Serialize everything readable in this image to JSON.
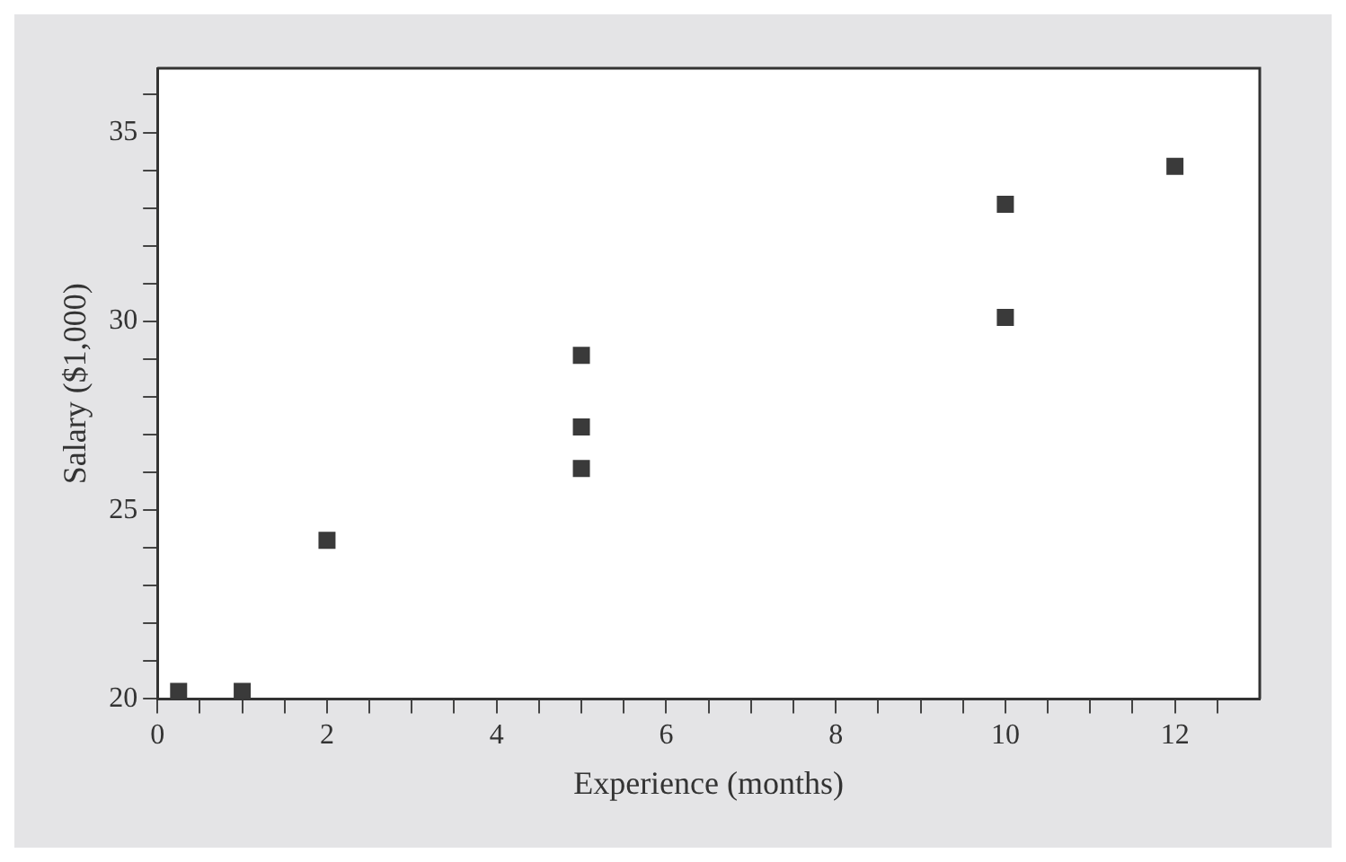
{
  "chart_data": {
    "type": "scatter",
    "xlabel": "Experience (months)",
    "ylabel": "Salary ($1,000)",
    "x": [
      0.25,
      1,
      2,
      5,
      5,
      5,
      10,
      10,
      12
    ],
    "values": [
      20.2,
      20.2,
      24.2,
      29.1,
      27.2,
      26.1,
      33.1,
      30.1,
      34.1
    ],
    "color": "#3a3a3a",
    "marker": "square",
    "grid": false,
    "legend": false,
    "xlim": [
      0,
      13
    ],
    "ylim": [
      20,
      36.7
    ],
    "xticks": [
      0,
      {
        "value": 0.5,
        "label": null
      },
      {
        "value": 1,
        "label": null
      },
      {
        "value": 1.5,
        "label": null
      },
      2,
      {
        "value": 2.5,
        "label": null
      },
      {
        "value": 3,
        "label": null
      },
      {
        "value": 3.5,
        "label": null
      },
      4,
      {
        "value": 4.5,
        "label": null
      },
      {
        "value": 5,
        "label": null
      },
      {
        "value": 5.5,
        "label": null
      },
      6,
      {
        "value": 6.5,
        "label": null
      },
      {
        "value": 7,
        "label": null
      },
      {
        "value": 7.5,
        "label": null
      },
      8,
      {
        "value": 8.5,
        "label": null
      },
      {
        "value": 9,
        "label": null
      },
      {
        "value": 9.5,
        "label": null
      },
      10,
      {
        "value": 10.5,
        "label": null
      },
      {
        "value": 11,
        "label": null
      },
      {
        "value": 11.5,
        "label": null
      },
      12,
      {
        "value": 12.5,
        "label": null
      }
    ],
    "yticks": [
      20,
      {
        "value": 21,
        "label": null
      },
      {
        "value": 22,
        "label": null
      },
      {
        "value": 23,
        "label": null
      },
      {
        "value": 24,
        "label": null
      },
      25,
      {
        "value": 26,
        "label": null
      },
      {
        "value": 27,
        "label": null
      },
      {
        "value": 28,
        "label": null
      },
      {
        "value": 29,
        "label": null
      },
      30,
      {
        "value": 31,
        "label": null
      },
      {
        "value": 32,
        "label": null
      },
      {
        "value": 33,
        "label": null
      },
      {
        "value": 34,
        "label": null
      },
      35,
      {
        "value": 36,
        "label": null
      }
    ]
  }
}
